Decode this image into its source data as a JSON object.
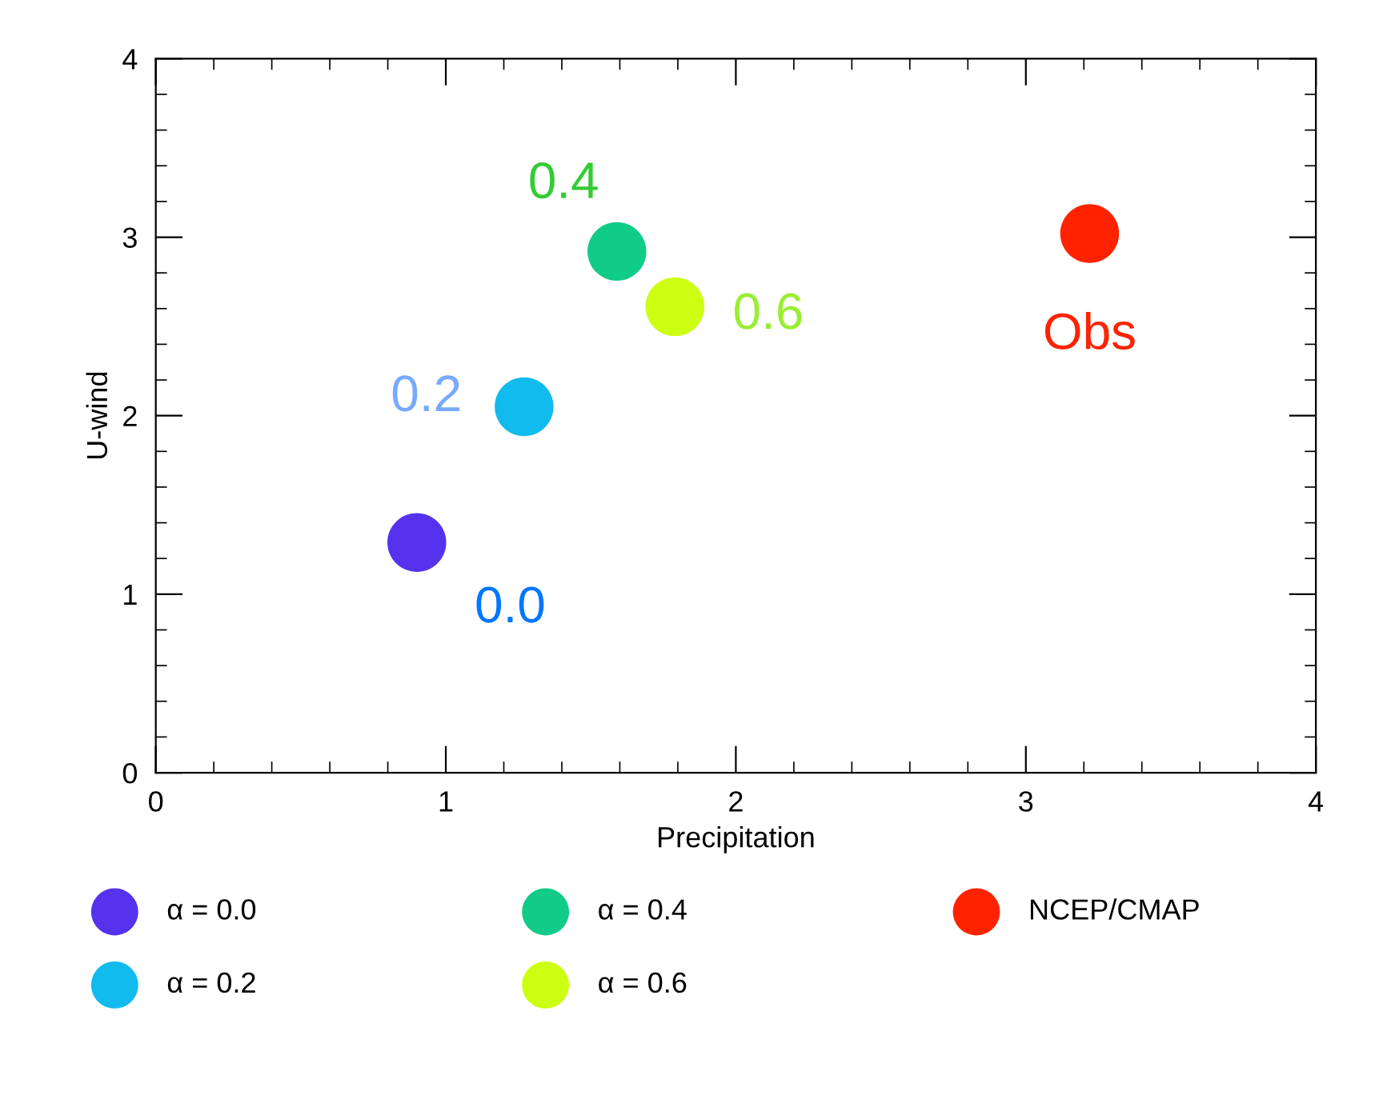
{
  "chart_data": {
    "type": "scatter",
    "xlabel": "Precipitation",
    "ylabel": "U-wind",
    "xlim": [
      0,
      4
    ],
    "ylim": [
      0,
      4
    ],
    "xticks": [
      0,
      1,
      2,
      3,
      4
    ],
    "yticks": [
      0,
      1,
      2,
      3,
      4
    ],
    "grid": false,
    "legend": "bottom",
    "marker": "circle",
    "series": [
      {
        "name": "α = 0.0",
        "color": "#5533ee",
        "x": [
          0.9
        ],
        "values": [
          1.29
        ]
      },
      {
        "name": "α = 0.2",
        "color": "#11bbee",
        "x": [
          1.27
        ],
        "values": [
          2.05
        ]
      },
      {
        "name": "α = 0.4",
        "color": "#11cc88",
        "x": [
          1.59
        ],
        "values": [
          2.92
        ]
      },
      {
        "name": "α = 0.6",
        "color": "#ccff11",
        "x": [
          1.79
        ],
        "values": [
          2.61
        ]
      },
      {
        "name": "NCEP/CMAP",
        "color": "#ff2200",
        "x": [
          3.22
        ],
        "values": [
          3.02
        ]
      }
    ],
    "annotations": [
      {
        "text": "0.0",
        "x": 0.9,
        "y": 1.29
      },
      {
        "text": "0.2",
        "x": 1.27,
        "y": 2.05
      },
      {
        "text": "0.4",
        "x": 1.59,
        "y": 2.92
      },
      {
        "text": "0.6",
        "x": 1.79,
        "y": 2.61
      },
      {
        "text": "Obs",
        "x": 3.22,
        "y": 3.02
      }
    ]
  }
}
